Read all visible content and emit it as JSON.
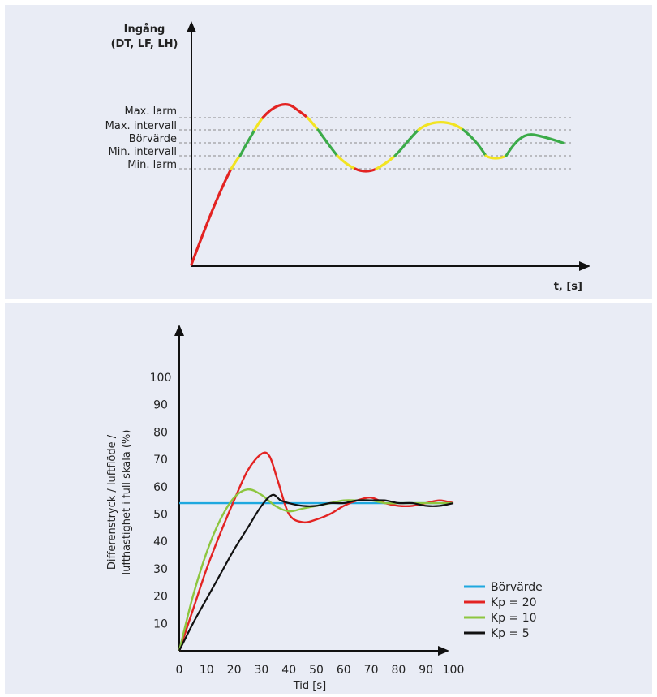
{
  "top_chart": {
    "y_title_line1": "Ingång",
    "y_title_line2": "(DT, LF, LH)",
    "x_title": "t, [s]",
    "levels": [
      "Max. larm",
      "Max. intervall",
      "Börvärde",
      "Min. intervall",
      "Min. larm"
    ],
    "colors": {
      "red": "#e32322",
      "yellow": "#f2e422",
      "green": "#3bab49",
      "axis": "#111111",
      "dashed": "#888888"
    }
  },
  "chart_data": {
    "type": "line",
    "xlabel": "Tid [s]",
    "ylabel_line1": "Differenstryck / luftflöde /",
    "ylabel_line2": "lufthastighet i full skala (%)",
    "xlim": [
      0,
      100
    ],
    "ylim": [
      0,
      100
    ],
    "x_ticks": [
      "0",
      "10",
      "20",
      "30",
      "40",
      "50",
      "60",
      "70",
      "80",
      "90",
      "100"
    ],
    "y_ticks": [
      "10",
      "20",
      "30",
      "40",
      "50",
      "60",
      "70",
      "80",
      "90",
      "100"
    ],
    "legend_position": "bottom-right",
    "series": [
      {
        "name": "Börvärde",
        "color": "#1ea8df",
        "x": [
          0,
          100
        ],
        "y": [
          54,
          54
        ]
      },
      {
        "name": "Kp = 20",
        "color": "#e32322",
        "x": [
          0,
          5,
          10,
          15,
          20,
          25,
          30,
          33,
          36,
          40,
          45,
          50,
          55,
          60,
          65,
          70,
          75,
          80,
          85,
          90,
          95,
          100
        ],
        "y": [
          0,
          15,
          30,
          43,
          55,
          66,
          72,
          71,
          62,
          50,
          47,
          48,
          50,
          53,
          55,
          56,
          54,
          53,
          53,
          54,
          55,
          54
        ]
      },
      {
        "name": "Kp = 10",
        "color": "#8dc63f",
        "x": [
          0,
          5,
          10,
          15,
          20,
          25,
          30,
          35,
          40,
          45,
          50,
          55,
          60,
          65,
          70,
          75,
          80,
          85,
          90,
          95,
          100
        ],
        "y": [
          0,
          20,
          36,
          48,
          56,
          59,
          57,
          53,
          51,
          52,
          53,
          54,
          55,
          55,
          55,
          54,
          54,
          54,
          54,
          54,
          54
        ]
      },
      {
        "name": "Kp = 5",
        "color": "#111111",
        "x": [
          0,
          5,
          10,
          15,
          20,
          25,
          30,
          34,
          37,
          40,
          45,
          50,
          55,
          60,
          65,
          70,
          75,
          80,
          85,
          90,
          95,
          100
        ],
        "y": [
          0,
          10,
          19,
          28,
          37,
          45,
          53,
          57,
          55,
          54,
          53,
          53,
          54,
          54,
          55,
          55,
          55,
          54,
          54,
          53,
          53,
          54
        ]
      }
    ],
    "legend": [
      "Börvärde",
      "Kp = 20",
      "Kp = 10",
      "Kp = 5"
    ]
  }
}
